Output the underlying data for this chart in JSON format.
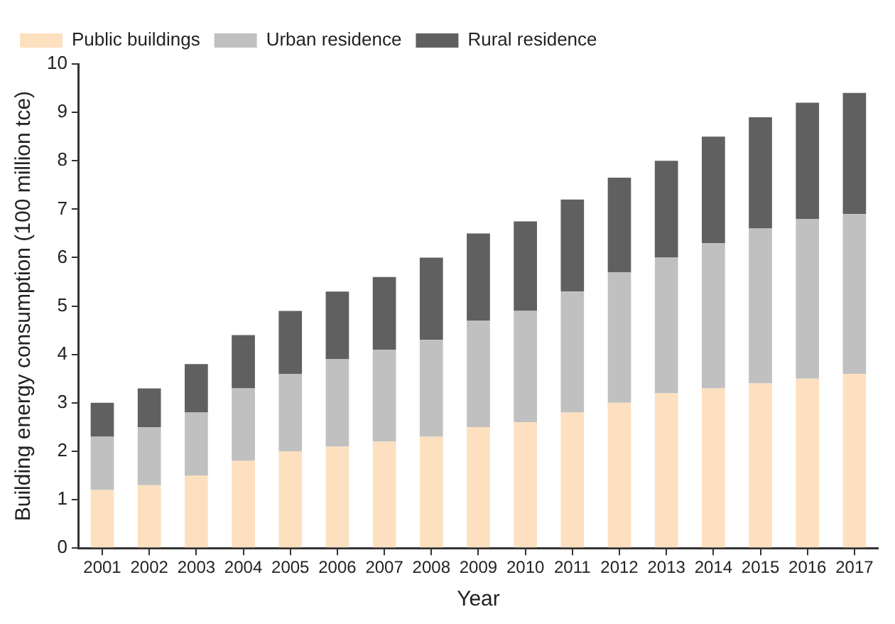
{
  "chart_data": {
    "type": "bar",
    "stacked": true,
    "xlabel": "Year",
    "ylabel": "Building energy consumption (100 million tce)",
    "categories": [
      "2001",
      "2002",
      "2003",
      "2004",
      "2005",
      "2006",
      "2007",
      "2008",
      "2009",
      "2010",
      "2011",
      "2012",
      "2013",
      "2014",
      "2015",
      "2016",
      "2017"
    ],
    "series": [
      {
        "name": "Public buildings",
        "color": "#fde0c0",
        "values": [
          1.2,
          1.3,
          1.5,
          1.8,
          2.0,
          2.1,
          2.2,
          2.3,
          2.5,
          2.6,
          2.8,
          3.0,
          3.2,
          3.3,
          3.4,
          3.5,
          3.6
        ]
      },
      {
        "name": "Urban residence",
        "color": "#c0c0c0",
        "values": [
          1.1,
          1.2,
          1.3,
          1.5,
          1.6,
          1.8,
          1.9,
          2.0,
          2.2,
          2.3,
          2.5,
          2.7,
          2.8,
          3.0,
          3.2,
          3.3,
          3.3
        ]
      },
      {
        "name": "Rural residence",
        "color": "#606060",
        "values": [
          0.7,
          0.8,
          1.0,
          1.1,
          1.3,
          1.4,
          1.5,
          1.7,
          1.8,
          1.85,
          1.9,
          1.95,
          2.0,
          2.2,
          2.3,
          2.4,
          2.5
        ]
      }
    ],
    "ylim": [
      0,
      10
    ],
    "yticks": [
      0,
      1,
      2,
      3,
      4,
      5,
      6,
      7,
      8,
      9,
      10
    ],
    "grid": false,
    "legend": "top left"
  }
}
